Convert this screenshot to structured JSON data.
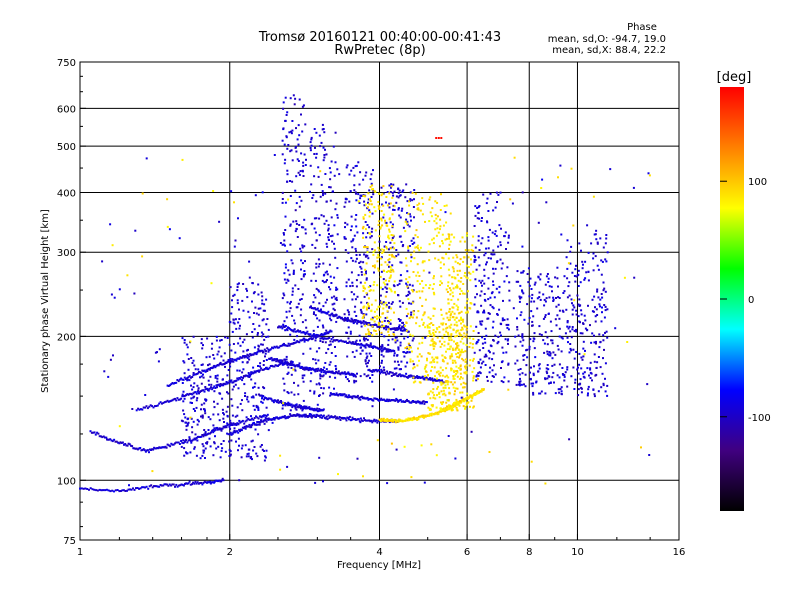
{
  "header": {
    "title_line1": "Tromsø 20160121 00:40:00-00:41:43",
    "title_line2": "RwPretec (8p)",
    "phase_heading": "Phase",
    "phase_o": "mean, sd,O: -94.7, 19.0",
    "phase_x": "mean, sd,X:  88.4, 22.2"
  },
  "chart_data": {
    "type": "scatter",
    "title": "Tromsø 20160121 00:40:00-00:41:43",
    "subtitle": "RwPretec (8p)",
    "xlabel": "Frequency [MHz]",
    "ylabel": "Stationary phase Virtual Height [km]",
    "x_scale": "log",
    "y_scale": "log",
    "xlim": [
      1,
      16
    ],
    "ylim": [
      75,
      750
    ],
    "x_ticks": [
      1,
      2,
      4,
      6,
      8,
      10,
      16
    ],
    "x_tick_labels": [
      "1",
      "2",
      "4",
      "6",
      "8",
      "10",
      "16"
    ],
    "x_gridlines": [
      2,
      4,
      6,
      8,
      10
    ],
    "y_ticks": [
      75,
      100,
      200,
      300,
      400,
      500,
      600,
      750
    ],
    "y_tick_labels": [
      "75",
      "100",
      "200",
      "300",
      "400",
      "500",
      "600",
      "750"
    ],
    "y_gridlines": [
      100,
      200,
      300,
      400,
      500,
      600
    ],
    "grid": true,
    "colorbar": {
      "label": "[deg]",
      "min": -180,
      "max": 180,
      "ticks": [
        -100,
        0,
        100
      ],
      "tick_labels": [
        "-100",
        "0",
        "100"
      ],
      "colors": [
        "#000000",
        "#400080",
        "#0000ff",
        "#00ffff",
        "#00ff00",
        "#ffff00",
        "#ff8000",
        "#ff0000"
      ]
    },
    "series": [
      {
        "phase_deg": -94.7,
        "phase_sd": 19.0,
        "traces": [
          {
            "x": [
              1.0,
              1.2,
              1.4,
              1.6,
              1.8,
              1.95
            ],
            "y": [
              96,
              95,
              97,
              98,
              99,
              100
            ]
          },
          {
            "x": [
              1.05,
              1.2,
              1.35,
              1.5,
              1.7,
              1.9,
              2.1,
              2.4
            ],
            "y": [
              126,
              120,
              115,
              118,
              122,
              128,
              132,
              138
            ]
          },
          {
            "x": [
              1.3,
              1.5,
              1.7,
              1.9,
              2.1,
              2.3,
              2.6
            ],
            "y": [
              140,
              146,
              152,
              158,
              163,
              170,
              176
            ]
          },
          {
            "x": [
              1.5,
              1.7,
              1.9,
              2.1,
              2.3,
              2.6,
              2.9,
              3.2
            ],
            "y": [
              158,
              166,
              174,
              180,
              186,
              192,
              198,
              205
            ]
          },
          {
            "x": [
              2.0,
              2.2,
              2.4,
              2.6,
              2.8,
              3.0,
              3.3,
              3.6,
              4.0,
              4.4
            ],
            "y": [
              125,
              130,
              134,
              136,
              137,
              136,
              135,
              134,
              133,
              133
            ]
          },
          {
            "x": [
              2.3,
              2.5,
              2.7,
              2.9,
              3.1
            ],
            "y": [
              150,
              146,
              143,
              141,
              140
            ]
          },
          {
            "x": [
              2.4,
              2.6,
              2.8,
              3.0,
              3.3,
              3.6
            ],
            "y": [
              180,
              176,
              172,
              170,
              168,
              166
            ]
          },
          {
            "x": [
              2.5,
              2.8,
              3.1,
              3.5,
              3.9,
              4.3
            ],
            "y": [
              210,
              204,
              198,
              194,
              190,
              186
            ]
          },
          {
            "x": [
              2.9,
              3.2,
              3.5,
              3.8,
              4.2,
              4.6
            ],
            "y": [
              230,
              222,
              216,
              212,
              208,
              205
            ]
          },
          {
            "x": [
              3.2,
              3.5,
              3.8,
              4.2,
              4.6,
              5.0
            ],
            "y": [
              152,
              150,
              148,
              147,
              146,
              145
            ]
          },
          {
            "x": [
              3.8,
              4.2,
              4.6,
              5.0,
              5.4
            ],
            "y": [
              170,
              167,
              165,
              163,
              161
            ]
          }
        ],
        "columns": [
          {
            "x": [
              2.55,
              2.85
            ],
            "y": [
              140,
              640
            ]
          },
          {
            "x": [
              2.9,
              3.3
            ],
            "y": [
              150,
              560
            ]
          },
          {
            "x": [
              3.4,
              3.9
            ],
            "y": [
              160,
              470
            ]
          },
          {
            "x": [
              4.0,
              4.7
            ],
            "y": [
              170,
              420
            ]
          },
          {
            "x": [
              2.0,
              2.4
            ],
            "y": [
              110,
              260
            ]
          },
          {
            "x": [
              1.6,
              2.0
            ],
            "y": [
              110,
              200
            ]
          },
          {
            "x": [
              6.2,
              7.3
            ],
            "y": [
              160,
              400
            ]
          },
          {
            "x": [
              7.5,
              9.5
            ],
            "y": [
              150,
              280
            ]
          },
          {
            "x": [
              9.5,
              11.5
            ],
            "y": [
              150,
              330
            ]
          }
        ]
      },
      {
        "phase_deg": 88.4,
        "phase_sd": 22.2,
        "traces": [
          {
            "x": [
              4.0,
              4.3,
              4.6,
              4.9,
              5.2,
              5.5,
              5.8
            ],
            "y": [
              134,
              133,
              134,
              136,
              138,
              141,
              145
            ]
          },
          {
            "x": [
              5.3,
              5.6,
              5.9,
              6.2,
              6.5
            ],
            "y": [
              140,
              143,
              147,
              151,
              155
            ]
          }
        ],
        "columns": [
          {
            "x": [
              3.7,
              4.3
            ],
            "y": [
              200,
              420
            ]
          },
          {
            "x": [
              4.5,
              5.5
            ],
            "y": [
              160,
              400
            ]
          },
          {
            "x": [
              5.5,
              6.2
            ],
            "y": [
              140,
              330
            ]
          },
          {
            "x": [
              5.0,
              6.0
            ],
            "y": [
              140,
              220
            ]
          }
        ]
      }
    ],
    "annotations": [
      {
        "x": 5.2,
        "y": 520,
        "phase_deg": 175
      }
    ]
  }
}
